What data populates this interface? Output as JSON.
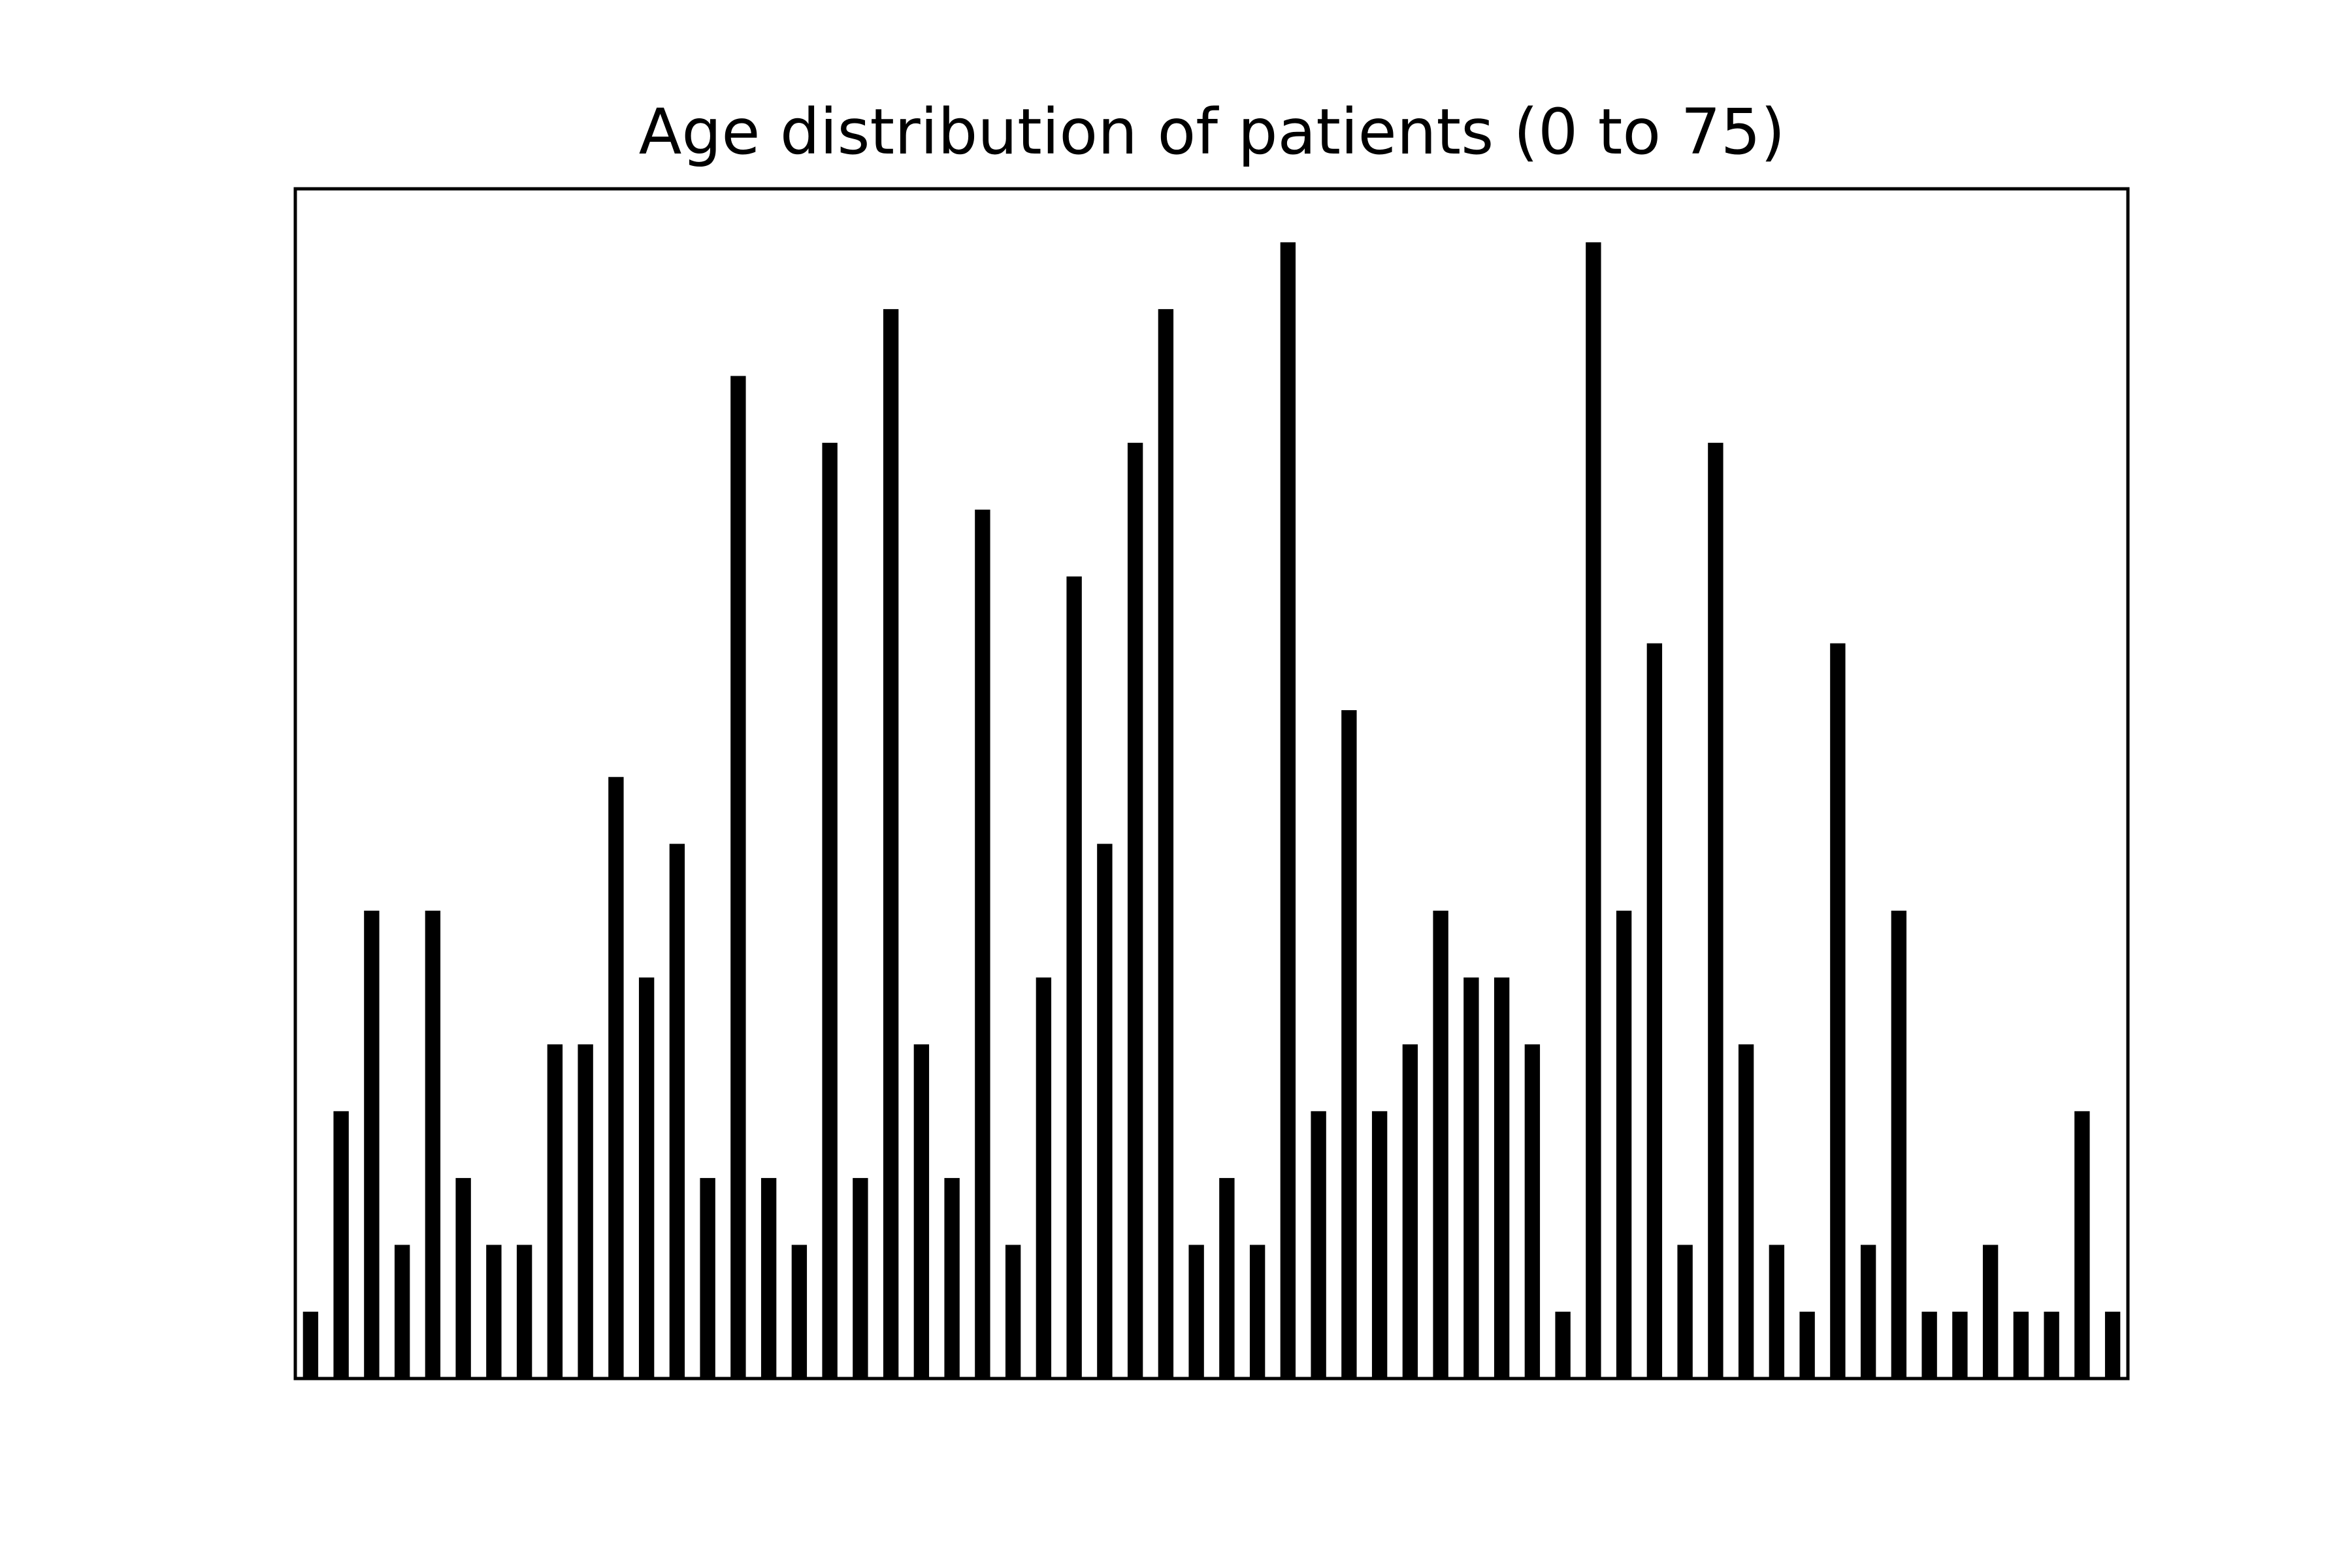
{
  "chart_data": {
    "type": "bar",
    "title": "Age distribution of patients (0 to 75)",
    "xlabel": "",
    "ylabel": "",
    "bar_color": "#000000",
    "frame_color": "#000000",
    "background": "#ffffff",
    "grid": false,
    "axes_ticks_visible": false,
    "xlim": [
      0,
      60
    ],
    "ylim": [
      0,
      17.8
    ],
    "values": [
      1,
      4,
      7,
      2,
      7,
      3,
      2,
      2,
      5,
      5,
      9,
      6,
      8,
      3,
      15,
      3,
      2,
      14,
      3,
      16,
      5,
      3,
      13,
      2,
      6,
      12,
      8,
      14,
      16,
      2,
      3,
      2,
      17,
      4,
      10,
      4,
      5,
      7,
      6,
      6,
      5,
      1,
      17,
      7,
      11,
      2,
      14,
      5,
      2,
      1,
      11,
      2,
      7,
      1,
      1,
      2,
      1,
      1,
      4,
      1
    ]
  }
}
